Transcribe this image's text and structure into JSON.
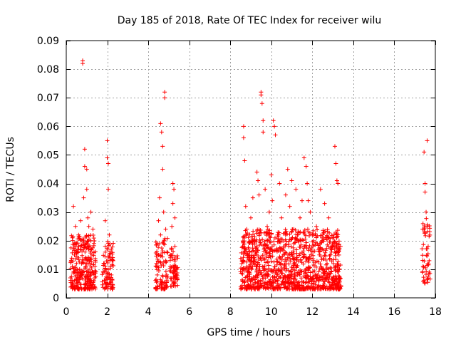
{
  "chart_data": {
    "type": "scatter",
    "title": "Day 185 of 2018, Rate Of TEC Index for receiver wilu",
    "xlabel": "GPS time / hours",
    "ylabel": "ROTI / TECUs",
    "xlim": [
      0,
      18
    ],
    "ylim": [
      0,
      0.09
    ],
    "x_ticks": [
      0,
      2,
      4,
      6,
      8,
      10,
      12,
      14,
      16,
      18
    ],
    "x_tick_labels": [
      "0",
      "2",
      "4",
      "6",
      "8",
      "10",
      "12",
      "14",
      "16",
      "18"
    ],
    "y_ticks": [
      0,
      0.01,
      0.02,
      0.03,
      0.04,
      0.05,
      0.06,
      0.07,
      0.08,
      0.09
    ],
    "y_tick_labels": [
      "0",
      "0.01",
      "0.02",
      "0.03",
      "0.04",
      "0.05",
      "0.06",
      "0.07",
      "0.08",
      "0.09"
    ],
    "grid": true,
    "marker": "+",
    "marker_color": "#ff0000",
    "series": [
      {
        "name": "ROTI",
        "points": [
          [
            0.3,
            0.011
          ],
          [
            0.3,
            0.021
          ],
          [
            0.35,
            0.032
          ],
          [
            0.4,
            0.009
          ],
          [
            0.4,
            0.015
          ],
          [
            0.45,
            0.025
          ],
          [
            0.5,
            0.012
          ],
          [
            0.5,
            0.019
          ],
          [
            0.55,
            0.008
          ],
          [
            0.6,
            0.014
          ],
          [
            0.6,
            0.022
          ],
          [
            0.65,
            0.01
          ],
          [
            0.7,
            0.017
          ],
          [
            0.7,
            0.027
          ],
          [
            0.75,
            0.012
          ],
          [
            0.8,
            0.082
          ],
          [
            0.8,
            0.083
          ],
          [
            0.82,
            0.013
          ],
          [
            0.85,
            0.035
          ],
          [
            0.9,
            0.046
          ],
          [
            0.9,
            0.052
          ],
          [
            0.95,
            0.011
          ],
          [
            1.0,
            0.038
          ],
          [
            1.0,
            0.045
          ],
          [
            1.05,
            0.028
          ],
          [
            1.1,
            0.018
          ],
          [
            1.1,
            0.025
          ],
          [
            1.15,
            0.012
          ],
          [
            1.2,
            0.02
          ],
          [
            1.2,
            0.03
          ],
          [
            1.25,
            0.015
          ],
          [
            1.3,
            0.024
          ],
          [
            1.3,
            0.009
          ],
          [
            1.35,
            0.019
          ],
          [
            1.4,
            0.011
          ],
          [
            1.85,
            0.012
          ],
          [
            1.9,
            0.018
          ],
          [
            1.9,
            0.027
          ],
          [
            1.95,
            0.009
          ],
          [
            2.0,
            0.055
          ],
          [
            2.0,
            0.049
          ],
          [
            2.05,
            0.047
          ],
          [
            2.05,
            0.038
          ],
          [
            2.1,
            0.015
          ],
          [
            2.1,
            0.022
          ],
          [
            2.15,
            0.011
          ],
          [
            2.2,
            0.017
          ],
          [
            2.2,
            0.008
          ],
          [
            4.4,
            0.012
          ],
          [
            4.45,
            0.019
          ],
          [
            4.5,
            0.027
          ],
          [
            4.5,
            0.015
          ],
          [
            4.55,
            0.035
          ],
          [
            4.6,
            0.022
          ],
          [
            4.6,
            0.061
          ],
          [
            4.65,
            0.058
          ],
          [
            4.7,
            0.053
          ],
          [
            4.7,
            0.045
          ],
          [
            4.75,
            0.03
          ],
          [
            4.8,
            0.072
          ],
          [
            4.8,
            0.07
          ],
          [
            4.85,
            0.024
          ],
          [
            4.85,
            0.013
          ],
          [
            4.9,
            0.008
          ],
          [
            5.1,
            0.015
          ],
          [
            5.15,
            0.025
          ],
          [
            5.2,
            0.033
          ],
          [
            5.2,
            0.04
          ],
          [
            5.25,
            0.038
          ],
          [
            5.3,
            0.028
          ],
          [
            5.3,
            0.018
          ],
          [
            5.35,
            0.01
          ],
          [
            5.4,
            0.007
          ],
          [
            8.6,
            0.01
          ],
          [
            8.6,
            0.018
          ],
          [
            8.65,
            0.06
          ],
          [
            8.65,
            0.056
          ],
          [
            8.7,
            0.048
          ],
          [
            8.75,
            0.032
          ],
          [
            8.8,
            0.024
          ],
          [
            8.85,
            0.014
          ],
          [
            8.9,
            0.009
          ],
          [
            9.0,
            0.028
          ],
          [
            9.1,
            0.035
          ],
          [
            9.2,
            0.02
          ],
          [
            9.3,
            0.044
          ],
          [
            9.35,
            0.041
          ],
          [
            9.4,
            0.036
          ],
          [
            9.5,
            0.072
          ],
          [
            9.5,
            0.071
          ],
          [
            9.55,
            0.068
          ],
          [
            9.6,
            0.062
          ],
          [
            9.6,
            0.058
          ],
          [
            9.7,
            0.038
          ],
          [
            9.8,
            0.025
          ],
          [
            9.9,
            0.03
          ],
          [
            10.0,
            0.043
          ],
          [
            10.05,
            0.034
          ],
          [
            10.1,
            0.062
          ],
          [
            10.15,
            0.06
          ],
          [
            10.2,
            0.057
          ],
          [
            10.3,
            0.022
          ],
          [
            10.4,
            0.04
          ],
          [
            10.5,
            0.028
          ],
          [
            10.6,
            0.018
          ],
          [
            10.7,
            0.036
          ],
          [
            10.8,
            0.045
          ],
          [
            10.9,
            0.032
          ],
          [
            11.0,
            0.041
          ],
          [
            11.1,
            0.024
          ],
          [
            11.2,
            0.038
          ],
          [
            11.3,
            0.02
          ],
          [
            11.4,
            0.028
          ],
          [
            11.5,
            0.034
          ],
          [
            11.6,
            0.049
          ],
          [
            11.7,
            0.046
          ],
          [
            11.75,
            0.04
          ],
          [
            11.8,
            0.034
          ],
          [
            11.9,
            0.03
          ],
          [
            12.0,
            0.022
          ],
          [
            12.2,
            0.025
          ],
          [
            12.4,
            0.038
          ],
          [
            12.6,
            0.033
          ],
          [
            12.8,
            0.028
          ],
          [
            13.0,
            0.021
          ],
          [
            13.1,
            0.053
          ],
          [
            13.15,
            0.047
          ],
          [
            13.2,
            0.041
          ],
          [
            13.25,
            0.04
          ],
          [
            13.3,
            0.015
          ],
          [
            17.4,
            0.011
          ],
          [
            17.45,
            0.051
          ],
          [
            17.5,
            0.04
          ],
          [
            17.5,
            0.037
          ],
          [
            17.55,
            0.03
          ],
          [
            17.6,
            0.055
          ],
          [
            17.6,
            0.025
          ],
          [
            17.65,
            0.018
          ],
          [
            17.7,
            0.009
          ],
          [
            17.7,
            0.013
          ]
        ]
      }
    ],
    "dense_clusters": [
      {
        "x_range": [
          0.2,
          1.45
        ],
        "y_range": [
          0.003,
          0.022
        ],
        "count": 280
      },
      {
        "x_range": [
          1.75,
          2.3
        ],
        "y_range": [
          0.003,
          0.02
        ],
        "count": 90
      },
      {
        "x_range": [
          4.35,
          4.95
        ],
        "y_range": [
          0.003,
          0.022
        ],
        "count": 90
      },
      {
        "x_range": [
          5.05,
          5.45
        ],
        "y_range": [
          0.004,
          0.018
        ],
        "count": 60
      },
      {
        "x_range": [
          8.5,
          13.4
        ],
        "y_range": [
          0.003,
          0.024
        ],
        "count": 1100
      },
      {
        "x_range": [
          17.35,
          17.75
        ],
        "y_range": [
          0.005,
          0.028
        ],
        "count": 50
      }
    ]
  }
}
